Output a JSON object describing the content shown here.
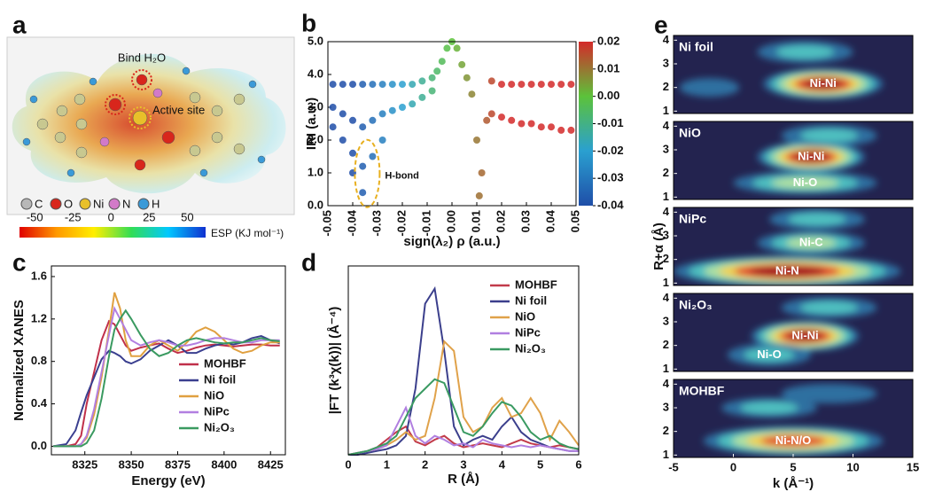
{
  "panel_labels": [
    "a",
    "b",
    "c",
    "d",
    "e"
  ],
  "panel_a": {
    "annotations": [
      "Bind H₂O",
      "Active site"
    ],
    "legend": [
      {
        "name": "C",
        "color": "#b8b8b8"
      },
      {
        "name": "O",
        "color": "#d8261c"
      },
      {
        "name": "Ni",
        "color": "#e8c02a"
      },
      {
        "name": "N",
        "color": "#d27ac8"
      },
      {
        "name": "H",
        "color": "#3a9ad8"
      }
    ],
    "colorbar": {
      "label": "ESP (KJ mol⁻¹)",
      "lim": [
        -60,
        62
      ],
      "ticks": [
        -50,
        -25,
        0,
        25,
        50
      ],
      "colors": [
        "#e00000",
        "#ff9900",
        "#ffee00",
        "#33dd55",
        "#00c8ff",
        "#1030d0"
      ]
    }
  },
  "chart_data": [
    {
      "type": "scatter",
      "xlabel": "sign(λ₂) ρ (a.u.)",
      "ylabel": "IRI (a.u.)",
      "xlim": [
        -0.05,
        0.05
      ],
      "ylim": [
        0,
        5
      ],
      "xticks": [
        -0.05,
        -0.04,
        -0.03,
        -0.02,
        -0.01,
        {
          "value": 0,
          "label": "0.00"
        },
        0.01,
        0.02,
        0.03,
        0.04,
        0.05
      ],
      "yticks": [
        {
          "value": 0,
          "label": "0.0"
        },
        {
          "value": 1,
          "label": "1.0"
        },
        {
          "value": 2,
          "label": "2.0"
        },
        {
          "value": 3,
          "label": "3.0"
        },
        {
          "value": 4,
          "label": "4.0"
        },
        {
          "value": 5,
          "label": "5.0"
        }
      ],
      "x": [
        -0.048,
        -0.048,
        -0.048,
        -0.044,
        -0.044,
        -0.044,
        -0.04,
        -0.04,
        -0.04,
        -0.04,
        -0.036,
        -0.036,
        -0.036,
        -0.036,
        -0.032,
        -0.032,
        -0.032,
        -0.028,
        -0.028,
        -0.028,
        -0.024,
        -0.024,
        -0.02,
        -0.02,
        -0.016,
        -0.016,
        -0.012,
        -0.012,
        -0.008,
        -0.008,
        -0.006,
        -0.004,
        -0.002,
        0.0,
        0.002,
        0.004,
        0.006,
        0.008,
        0.01,
        0.011,
        0.012,
        0.014,
        0.016,
        0.016,
        0.02,
        0.02,
        0.024,
        0.024,
        0.028,
        0.028,
        0.032,
        0.032,
        0.036,
        0.036,
        0.04,
        0.04,
        0.044,
        0.044,
        0.048,
        0.048
      ],
      "values": [
        3.7,
        3.0,
        2.4,
        3.7,
        2.8,
        2.0,
        3.7,
        2.6,
        1.6,
        1.0,
        3.7,
        2.4,
        1.2,
        0.4,
        3.7,
        2.6,
        1.5,
        3.7,
        2.8,
        2.0,
        3.7,
        2.9,
        3.7,
        3.0,
        3.7,
        3.1,
        3.8,
        3.3,
        3.9,
        3.5,
        4.1,
        4.4,
        4.8,
        5.0,
        4.8,
        4.3,
        3.9,
        3.4,
        2.0,
        0.3,
        1.0,
        2.6,
        3.8,
        2.8,
        3.7,
        2.7,
        3.7,
        2.6,
        3.7,
        2.5,
        3.7,
        2.5,
        3.7,
        2.4,
        3.7,
        2.4,
        3.7,
        2.3,
        3.7,
        2.3
      ],
      "annotations": [
        {
          "text": "H-bond",
          "x": -0.027,
          "y": 0.9
        }
      ],
      "colorbar": {
        "lim": [
          -0.04,
          0.02
        ],
        "ticks": [
          0.02,
          0.01,
          {
            "value": 0,
            "label": "0.00"
          },
          -0.01,
          -0.02,
          -0.03,
          -0.04
        ],
        "colors": [
          "#1f4ea8",
          "#2aa0d0",
          "#5cc23a",
          "#d42a2a"
        ]
      }
    },
    {
      "type": "line",
      "xlabel": "Energy (eV)",
      "ylabel": "Normalized XANES",
      "xlim": [
        8307,
        8433
      ],
      "ylim": [
        -0.08,
        1.7
      ],
      "xticks": [
        8325,
        8350,
        8375,
        8400,
        8425
      ],
      "yticks": [
        {
          "value": 0,
          "label": "0.0"
        },
        0.4,
        0.8,
        1.2,
        1.6
      ],
      "legend": "lower right",
      "x": [
        8308,
        8315,
        8320,
        8323,
        8326,
        8330,
        8334,
        8338,
        8341,
        8344,
        8347,
        8350,
        8355,
        8360,
        8365,
        8370,
        8375,
        8380,
        8385,
        8390,
        8395,
        8400,
        8405,
        8410,
        8415,
        8420,
        8425,
        8430
      ],
      "series": [
        {
          "name": "MOHBF",
          "color": "#c0304a",
          "values": [
            0.0,
            0.0,
            0.02,
            0.1,
            0.4,
            0.7,
            1.0,
            1.18,
            1.15,
            1.05,
            0.95,
            0.9,
            0.93,
            0.95,
            0.97,
            0.92,
            0.88,
            0.9,
            0.93,
            0.95,
            0.96,
            0.95,
            0.94,
            0.95,
            0.96,
            0.96,
            0.95,
            0.95
          ]
        },
        {
          "name": "Ni foil",
          "color": "#3a3f8f",
          "values": [
            0.0,
            0.02,
            0.15,
            0.32,
            0.48,
            0.65,
            0.82,
            0.9,
            0.88,
            0.85,
            0.8,
            0.78,
            0.82,
            0.9,
            0.95,
            1.0,
            0.95,
            0.88,
            0.88,
            0.92,
            0.95,
            0.97,
            0.96,
            0.98,
            1.02,
            1.04,
            1.0,
            0.97
          ]
        },
        {
          "name": "NiO",
          "color": "#e0a040",
          "values": [
            0.0,
            0.0,
            0.0,
            0.02,
            0.08,
            0.3,
            0.65,
            1.1,
            1.45,
            1.3,
            1.0,
            0.85,
            0.85,
            0.95,
            1.0,
            0.95,
            0.9,
            0.98,
            1.08,
            1.12,
            1.08,
            1.0,
            0.92,
            0.88,
            0.9,
            0.95,
            0.98,
            0.98
          ]
        },
        {
          "name": "NiPc",
          "color": "#b27fe0",
          "values": [
            0.0,
            0.0,
            0.0,
            0.02,
            0.1,
            0.35,
            0.7,
            1.05,
            1.3,
            1.2,
            1.1,
            1.0,
            0.95,
            0.98,
            1.0,
            0.98,
            0.95,
            0.95,
            0.97,
            1.0,
            1.02,
            1.02,
            1.0,
            0.98,
            0.98,
            1.0,
            1.0,
            1.0
          ]
        },
        {
          "name": "Ni₂O₃",
          "color": "#3a9a60",
          "values": [
            0.0,
            0.0,
            0.0,
            0.0,
            0.03,
            0.15,
            0.45,
            0.85,
            1.1,
            1.2,
            1.28,
            1.2,
            1.05,
            0.92,
            0.85,
            0.88,
            0.95,
            1.0,
            1.02,
            1.0,
            0.98,
            0.97,
            0.98,
            0.98,
            1.0,
            1.02,
            1.0,
            0.99
          ]
        }
      ]
    },
    {
      "type": "line",
      "xlabel": "R (Å)",
      "ylabel": "|FT (k³χ(k))| (Å⁻⁴)",
      "xlim": [
        0,
        6
      ],
      "ylim": [
        0,
        1
      ],
      "xticks": [
        0,
        1,
        2,
        3,
        4,
        5,
        6
      ],
      "legend": "upper right",
      "x": [
        0,
        0.25,
        0.5,
        0.75,
        1,
        1.25,
        1.5,
        1.75,
        2,
        2.25,
        2.5,
        2.75,
        3,
        3.25,
        3.5,
        3.75,
        4,
        4.25,
        4.5,
        4.75,
        5,
        5.25,
        5.5,
        5.75,
        6
      ],
      "series": [
        {
          "name": "MOHBF",
          "color": "#c23b4a",
          "values": [
            0,
            0.01,
            0.02,
            0.04,
            0.08,
            0.12,
            0.15,
            0.07,
            0.05,
            0.08,
            0.1,
            0.06,
            0.04,
            0.05,
            0.06,
            0.05,
            0.04,
            0.06,
            0.08,
            0.06,
            0.05,
            0.04,
            0.05,
            0.04,
            0.03
          ]
        },
        {
          "name": "Ni foil",
          "color": "#3b3f8c",
          "values": [
            0,
            0,
            0.01,
            0.02,
            0.03,
            0.05,
            0.1,
            0.35,
            0.8,
            0.88,
            0.55,
            0.15,
            0.05,
            0.08,
            0.1,
            0.08,
            0.15,
            0.2,
            0.12,
            0.08,
            0.06,
            0.04,
            0.03,
            0.02,
            0.02
          ]
        },
        {
          "name": "NiO",
          "color": "#e0a24a",
          "values": [
            0,
            0.01,
            0.02,
            0.03,
            0.05,
            0.08,
            0.12,
            0.08,
            0.1,
            0.3,
            0.6,
            0.55,
            0.2,
            0.12,
            0.15,
            0.25,
            0.3,
            0.2,
            0.22,
            0.3,
            0.22,
            0.08,
            0.18,
            0.12,
            0.05
          ]
        },
        {
          "name": "NiPc",
          "color": "#b07fe0",
          "values": [
            0,
            0.01,
            0.02,
            0.03,
            0.05,
            0.15,
            0.25,
            0.1,
            0.06,
            0.1,
            0.08,
            0.05,
            0.06,
            0.04,
            0.08,
            0.06,
            0.05,
            0.04,
            0.05,
            0.04,
            0.05,
            0.04,
            0.03,
            0.02,
            0.02
          ]
        },
        {
          "name": "Ni₂O₃",
          "color": "#3a9a62",
          "values": [
            0,
            0.01,
            0.02,
            0.04,
            0.06,
            0.1,
            0.2,
            0.3,
            0.35,
            0.4,
            0.38,
            0.25,
            0.12,
            0.1,
            0.15,
            0.22,
            0.28,
            0.26,
            0.2,
            0.12,
            0.08,
            0.1,
            0.06,
            0.04,
            0.03
          ]
        }
      ]
    },
    {
      "type": "heatmap",
      "title": "Ni foil",
      "xlim": [
        -5,
        15
      ],
      "ylim": [
        0.9,
        4.2
      ],
      "yticks": [
        1,
        2,
        3,
        4
      ],
      "colormap": [
        "#23234f",
        "#2f6fa0",
        "#4fc0c0",
        "#b0e0a0",
        "#f0d050",
        "#e04030",
        "#a01020"
      ],
      "peaks": [
        {
          "label": "Ni-Ni",
          "x": 7.5,
          "y": 2.15,
          "intensity": 1.0,
          "width": 10
        },
        {
          "x": 6,
          "y": 3.5,
          "intensity": 0.4,
          "width": 8
        },
        {
          "x": -2,
          "y": 2.0,
          "intensity": 0.15,
          "width": 5
        }
      ]
    },
    {
      "type": "heatmap",
      "title": "NiO",
      "xlim": [
        -5,
        15
      ],
      "ylim": [
        0.9,
        4.2
      ],
      "yticks": [
        1,
        2,
        3,
        4
      ],
      "colormap": [
        "#23234f",
        "#2f6fa0",
        "#4fc0c0",
        "#b0e0a0",
        "#f0d050",
        "#e04030",
        "#a01020"
      ],
      "peaks": [
        {
          "label": "Ni-Ni",
          "x": 6.5,
          "y": 2.7,
          "intensity": 0.95,
          "width": 9
        },
        {
          "label": "Ni-O",
          "x": 6,
          "y": 1.6,
          "intensity": 0.45,
          "width": 12
        },
        {
          "x": 8,
          "y": 3.6,
          "intensity": 0.4,
          "width": 8
        }
      ]
    },
    {
      "type": "heatmap",
      "title": "NiPc",
      "xlim": [
        -5,
        15
      ],
      "ylim": [
        0.9,
        4.2
      ],
      "yticks": [
        1,
        2,
        3,
        4
      ],
      "ylabel": "R+α (Å)",
      "colormap": [
        "#23234f",
        "#2f6fa0",
        "#4fc0c0",
        "#b0e0a0",
        "#f0d050",
        "#e04030",
        "#a01020"
      ],
      "peaks": [
        {
          "label": "Ni-N",
          "x": 4.5,
          "y": 1.5,
          "intensity": 1.0,
          "width": 19
        },
        {
          "label": "Ni-C",
          "x": 6.5,
          "y": 2.7,
          "intensity": 0.45,
          "width": 9
        },
        {
          "x": 7,
          "y": 3.7,
          "intensity": 0.3,
          "width": 8
        }
      ]
    },
    {
      "type": "heatmap",
      "title": "Ni₂O₃",
      "xlim": [
        -5,
        15
      ],
      "ylim": [
        0.9,
        4.2
      ],
      "yticks": [
        1,
        2,
        3,
        4
      ],
      "colormap": [
        "#23234f",
        "#2f6fa0",
        "#4fc0c0",
        "#b0e0a0",
        "#f0d050",
        "#e04030",
        "#a01020"
      ],
      "peaks": [
        {
          "label": "Ni-Ni",
          "x": 6,
          "y": 2.4,
          "intensity": 0.95,
          "width": 9
        },
        {
          "label": "Ni-O",
          "x": 3,
          "y": 1.6,
          "intensity": 0.4,
          "width": 7
        },
        {
          "x": 8,
          "y": 3.6,
          "intensity": 0.3,
          "width": 8
        }
      ]
    },
    {
      "type": "heatmap",
      "title": "MOHBF",
      "xlim": [
        -5,
        15
      ],
      "ylim": [
        0.9,
        4.2
      ],
      "yticks": [
        1,
        2,
        3,
        4
      ],
      "xticks": [
        -5,
        0,
        5,
        10,
        15
      ],
      "xlabel": "k (Å⁻¹)",
      "colormap": [
        "#23234f",
        "#2f6fa0",
        "#4fc0c0",
        "#b0e0a0",
        "#f0d050",
        "#e04030",
        "#a01020"
      ],
      "peaks": [
        {
          "label": "Ni-N/O",
          "x": 5,
          "y": 1.6,
          "intensity": 0.9,
          "width": 15
        },
        {
          "x": 3,
          "y": 3.0,
          "intensity": 0.25,
          "width": 8
        },
        {
          "x": 8,
          "y": 3.6,
          "intensity": 0.2,
          "width": 8
        }
      ]
    }
  ]
}
